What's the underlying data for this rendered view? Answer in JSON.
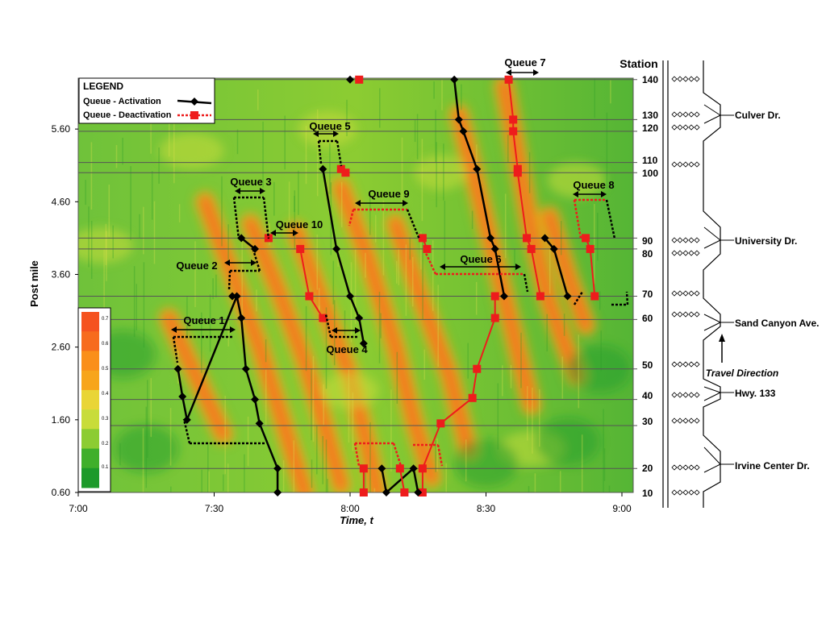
{
  "chart_data": {
    "type": "heatmap",
    "xlabel": "Time, t",
    "ylabel": "Post mile",
    "x_ticks": [
      "7:00",
      "7:30",
      "8:00",
      "8:30",
      "9:00"
    ],
    "x_range_min": [
      0,
      120
    ],
    "y_ticks": [
      0.6,
      1.6,
      2.6,
      3.6,
      4.6,
      5.6
    ],
    "y_range": [
      0.6,
      6.3
    ],
    "legend": {
      "title": "LEGEND",
      "activation_label": "Queue - Activation",
      "deactivation_label": "Queue - Deactivation",
      "activation_color": "#000000",
      "deactivation_color": "#ee1c1c",
      "placement": "top-left"
    },
    "colorbar": {
      "labels": [
        "0.7",
        "0.6",
        "0.5",
        "0.4",
        "0.3",
        "0.2",
        "0.1"
      ],
      "colors": [
        "#f5521f",
        "#f76b1d",
        "#fa8f1a",
        "#f7a51b",
        "#e9d536",
        "#c8dc3a",
        "#8ccc32",
        "#3faf2b",
        "#1c9a2a"
      ],
      "placement": "bottom-left"
    },
    "stations": {
      "title": "Station",
      "items": [
        {
          "label": "140",
          "pm": 6.28
        },
        {
          "label": "130",
          "pm": 5.73
        },
        {
          "label": "120",
          "pm": 5.57
        },
        {
          "label": "110",
          "pm": 5.14
        },
        {
          "label": "100",
          "pm": 5.0
        },
        {
          "label": "90",
          "pm": 4.1
        },
        {
          "label": "80",
          "pm": 3.95
        },
        {
          "label": "70",
          "pm": 3.3
        },
        {
          "label": "60",
          "pm": 2.98
        },
        {
          "label": "50",
          "pm": 2.3
        },
        {
          "label": "40",
          "pm": 1.88
        },
        {
          "label": "30",
          "pm": 1.52
        },
        {
          "label": "20",
          "pm": 0.93
        },
        {
          "label": "10",
          "pm": 0.6
        }
      ]
    },
    "map": {
      "ramps": [
        {
          "label": "Culver Dr.",
          "pm": 5.73
        },
        {
          "label": "University Dr.",
          "pm": 4.1
        },
        {
          "label": "Sand Canyon Ave.",
          "pm": 2.98
        },
        {
          "label": "Hwy. 133",
          "pm": 1.88
        },
        {
          "label": "Irvine Center Dr.",
          "pm": 0.93
        }
      ],
      "travel_direction_label": "Travel Direction"
    },
    "queues": [
      {
        "label": "Queue 1",
        "activation": [
          [
            22,
            2.3
          ],
          [
            23,
            1.92
          ],
          [
            24,
            1.6
          ],
          [
            35,
            3.3
          ],
          [
            36,
            3.0
          ],
          [
            37,
            2.3
          ],
          [
            39,
            1.88
          ],
          [
            40,
            1.55
          ],
          [
            44,
            0.93
          ],
          [
            44,
            0.6
          ]
        ],
        "deactivation": []
      },
      {
        "label": "Queue 2",
        "activation": [
          [
            34,
            3.3
          ]
        ],
        "deactivation": []
      },
      {
        "label": "Queue 3",
        "activation": [
          [
            36,
            4.1
          ],
          [
            39,
            3.95
          ]
        ],
        "deactivation": [
          [
            42,
            4.1
          ]
        ]
      },
      {
        "label": "Queue 10",
        "activation": [],
        "deactivation": [
          [
            49,
            3.95
          ],
          [
            51,
            3.3
          ],
          [
            54,
            3.0
          ]
        ]
      },
      {
        "label": "Queue 5",
        "activation": [
          [
            54,
            5.05
          ],
          [
            57,
            3.95
          ],
          [
            60,
            3.3
          ],
          [
            62,
            3.0
          ],
          [
            63,
            2.65
          ]
        ],
        "deactivation": [
          [
            58,
            5.05
          ],
          [
            59,
            5.0
          ]
        ]
      },
      {
        "label": "Queue 4",
        "activation": [],
        "deactivation": [
          [
            63,
            0.93
          ],
          [
            63,
            0.6
          ]
        ]
      },
      {
        "label": "Queue 9",
        "activation": [],
        "deactivation": [
          [
            76,
            4.1
          ],
          [
            77,
            3.95
          ]
        ]
      },
      {
        "label": "Queue 6",
        "activation": [],
        "deactivation": [
          [
            92,
            3.3
          ],
          [
            92,
            3.0
          ],
          [
            88,
            2.3
          ],
          [
            87,
            1.9
          ],
          [
            80,
            1.55
          ],
          [
            76,
            0.93
          ],
          [
            76,
            0.6
          ]
        ]
      },
      {
        "label": "Queue 7",
        "activation": [
          [
            83,
            6.28
          ],
          [
            84,
            5.73
          ],
          [
            85,
            5.57
          ],
          [
            88,
            5.05
          ],
          [
            91,
            4.1
          ],
          [
            92,
            3.95
          ],
          [
            94,
            3.3
          ]
        ],
        "deactivation": [
          [
            95,
            6.28
          ],
          [
            96,
            5.73
          ],
          [
            96,
            5.57
          ],
          [
            97,
            5.05
          ],
          [
            97,
            5.0
          ],
          [
            99,
            4.1
          ],
          [
            100,
            3.95
          ],
          [
            102,
            3.3
          ]
        ]
      },
      {
        "label": "Queue 8",
        "activation": [
          [
            103,
            4.1
          ],
          [
            105,
            3.95
          ],
          [
            108,
            3.3
          ]
        ],
        "deactivation": [
          [
            112,
            4.1
          ],
          [
            113,
            3.95
          ],
          [
            114,
            3.3
          ]
        ]
      },
      {
        "label": "",
        "activation": [
          [
            67,
            0.93
          ],
          [
            68,
            0.6
          ],
          [
            74,
            0.93
          ],
          [
            75,
            0.6
          ]
        ],
        "deactivation": [
          [
            71,
            0.93
          ],
          [
            72,
            0.6
          ]
        ]
      },
      {
        "label": "",
        "activation": [
          [
            60,
            6.28
          ]
        ],
        "deactivation": [
          [
            62,
            6.28
          ]
        ]
      }
    ]
  }
}
